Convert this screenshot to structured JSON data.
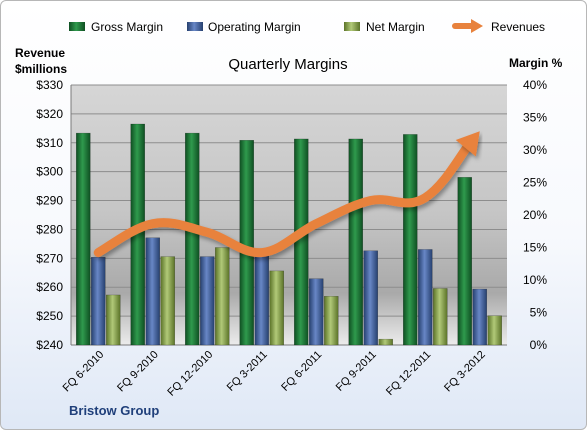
{
  "chart_data": {
    "type": "bar",
    "title": "Quarterly Margins",
    "company": "Bristow Group",
    "left_axis_label": [
      "Revenue",
      "$millions"
    ],
    "right_axis_label": "Margin %",
    "categories": [
      "FQ 6-2010",
      "FQ 9-2010",
      "FQ 12-2010",
      "FQ 3-2011",
      "FQ 6-2011",
      "FQ 9-2011",
      "FQ 12-2011",
      "FQ 3-2012"
    ],
    "left_axis": {
      "min": 240,
      "max": 330,
      "step": 10,
      "tick_labels": [
        "$240",
        "$250",
        "$260",
        "$270",
        "$280",
        "$290",
        "$300",
        "$310",
        "$320",
        "$330"
      ]
    },
    "right_axis": {
      "min": 0,
      "max": 40,
      "step": 5,
      "tick_labels": [
        "0%",
        "5%",
        "10%",
        "15%",
        "20%",
        "25%",
        "30%",
        "35%",
        "40%"
      ]
    },
    "series": [
      {
        "name": "Gross Margin",
        "axis": "right",
        "type": "bar",
        "color": "#1f7a3a",
        "values": [
          32.6,
          34.0,
          32.6,
          31.5,
          31.7,
          31.7,
          32.4,
          25.8
        ]
      },
      {
        "name": "Operating Margin",
        "axis": "right",
        "type": "bar",
        "color": "#4466a8",
        "values": [
          13.5,
          16.5,
          13.6,
          13.7,
          10.2,
          14.5,
          14.7,
          8.6
        ]
      },
      {
        "name": "Net Margin",
        "axis": "right",
        "type": "bar",
        "color": "#8aa74c",
        "values": [
          7.7,
          13.6,
          15.0,
          11.4,
          7.5,
          0.9,
          8.7,
          4.5
        ]
      },
      {
        "name": "Revenues",
        "axis": "left",
        "type": "line",
        "color": "#e8823d",
        "values": [
          272,
          282,
          279,
          272,
          282,
          290,
          291,
          314
        ]
      }
    ],
    "grid": true,
    "legend_position": "top"
  }
}
